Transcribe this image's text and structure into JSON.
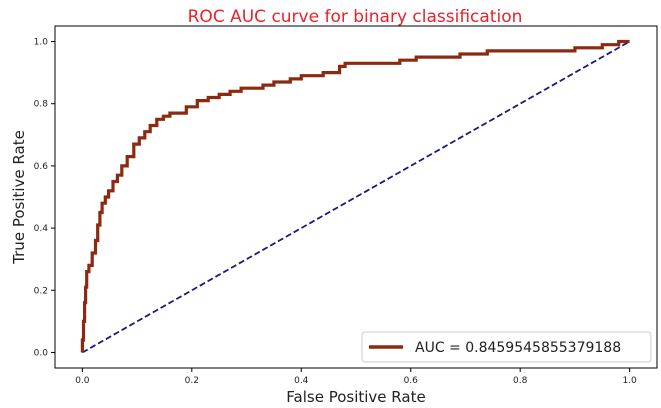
{
  "chart_data": {
    "type": "line",
    "title": "ROC AUC curve for binary classification",
    "xlabel": "False Positive Rate",
    "ylabel": "True Positive Rate",
    "xlim": [
      -0.05,
      1.05
    ],
    "ylim": [
      -0.05,
      1.05
    ],
    "xticks": [
      "0.0",
      "0.2",
      "0.4",
      "0.6",
      "0.8",
      "1.0"
    ],
    "yticks": [
      "0.0",
      "0.2",
      "0.4",
      "0.6",
      "0.8",
      "1.0"
    ],
    "grid": false,
    "legend_position": "lower-right",
    "series": [
      {
        "name": "AUC = 0.8459545855379188",
        "color": "#8b2a10",
        "style": "solid",
        "x": [
          0.0,
          0.0,
          0.002,
          0.002,
          0.004,
          0.004,
          0.006,
          0.006,
          0.008,
          0.008,
          0.012,
          0.012,
          0.018,
          0.018,
          0.024,
          0.024,
          0.028,
          0.028,
          0.032,
          0.032,
          0.036,
          0.036,
          0.042,
          0.042,
          0.048,
          0.048,
          0.056,
          0.056,
          0.064,
          0.064,
          0.072,
          0.072,
          0.082,
          0.082,
          0.094,
          0.094,
          0.104,
          0.104,
          0.114,
          0.114,
          0.124,
          0.124,
          0.136,
          0.136,
          0.148,
          0.148,
          0.16,
          0.16,
          0.172,
          0.172,
          0.19,
          0.19,
          0.21,
          0.21,
          0.23,
          0.23,
          0.25,
          0.25,
          0.27,
          0.27,
          0.29,
          0.29,
          0.33,
          0.33,
          0.35,
          0.35,
          0.38,
          0.38,
          0.4,
          0.4,
          0.44,
          0.44,
          0.47,
          0.47,
          0.48,
          0.48,
          0.58,
          0.58,
          0.61,
          0.61,
          0.65,
          0.65,
          0.69,
          0.69,
          0.74,
          0.74,
          0.8,
          0.8,
          0.9,
          0.9,
          0.95,
          0.95,
          0.98,
          0.98,
          1.0
        ],
        "y": [
          0.0,
          0.04,
          0.04,
          0.1,
          0.1,
          0.16,
          0.16,
          0.21,
          0.21,
          0.26,
          0.26,
          0.28,
          0.28,
          0.32,
          0.32,
          0.36,
          0.36,
          0.41,
          0.41,
          0.45,
          0.45,
          0.48,
          0.48,
          0.5,
          0.5,
          0.52,
          0.52,
          0.55,
          0.55,
          0.57,
          0.57,
          0.6,
          0.6,
          0.63,
          0.63,
          0.67,
          0.67,
          0.69,
          0.69,
          0.71,
          0.71,
          0.73,
          0.73,
          0.75,
          0.75,
          0.76,
          0.76,
          0.77,
          0.77,
          0.77,
          0.77,
          0.79,
          0.79,
          0.81,
          0.81,
          0.82,
          0.82,
          0.83,
          0.83,
          0.84,
          0.84,
          0.85,
          0.85,
          0.86,
          0.86,
          0.87,
          0.87,
          0.88,
          0.88,
          0.89,
          0.89,
          0.9,
          0.9,
          0.92,
          0.92,
          0.93,
          0.93,
          0.94,
          0.94,
          0.95,
          0.95,
          0.95,
          0.95,
          0.96,
          0.96,
          0.97,
          0.97,
          0.97,
          0.97,
          0.98,
          0.98,
          0.99,
          0.99,
          1.0,
          1.0
        ]
      },
      {
        "color": "#1a1a80",
        "style": "dashed",
        "x": [
          0.0,
          1.0
        ],
        "y": [
          0.0,
          1.0
        ]
      }
    ]
  }
}
